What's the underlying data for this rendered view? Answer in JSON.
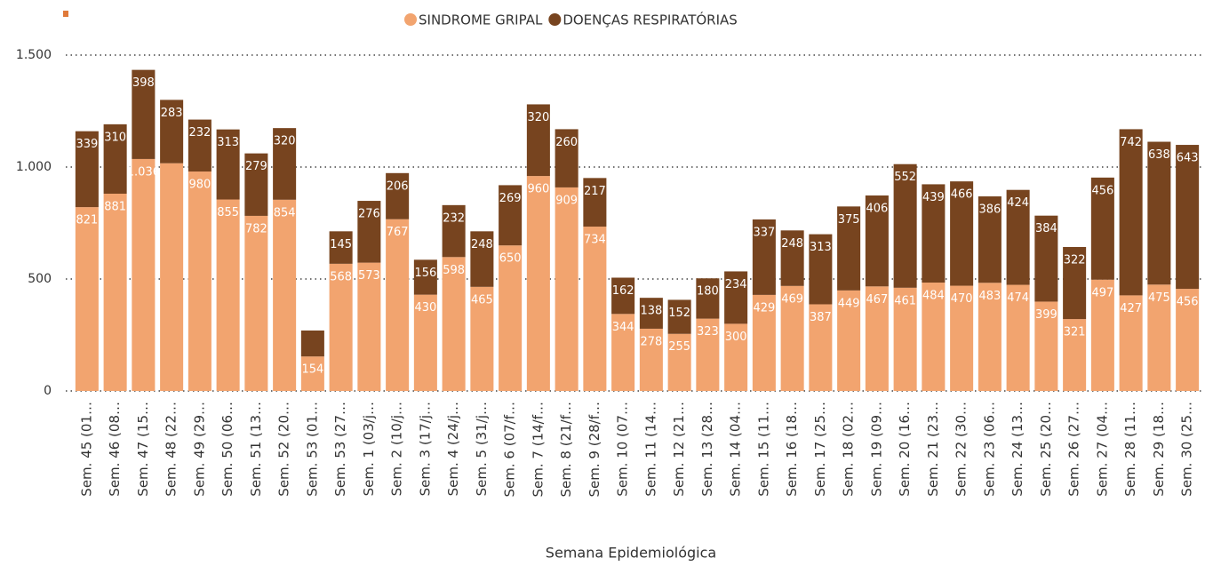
{
  "chart_data": {
    "type": "stacked-bar",
    "x_label": "Semana Epidemiológica",
    "categories": [
      "Sem. 45 (01…",
      "Sem. 46 (08…",
      "Sem. 47 (15…",
      "Sem. 48 (22…",
      "Sem. 49 (29…",
      "Sem. 50 (06…",
      "Sem. 51 (13…",
      "Sem. 52 (20…",
      "Sem. 53 (01…",
      "Sem. 53 (27…",
      "Sem. 1 (03/j…",
      "Sem. 2 (10/j…",
      "Sem. 3 (17/j…",
      "Sem. 4 (24/j…",
      "Sem. 5 (31/j…",
      "Sem. 6 (07/f…",
      "Sem. 7 (14/f…",
      "Sem. 8 (21/f…",
      "Sem. 9 (28/f…",
      "Sem. 10 (07…",
      "Sem. 11 (14…",
      "Sem. 12 (21…",
      "Sem. 13 (28…",
      "Sem. 14 (04…",
      "Sem. 15 (11…",
      "Sem. 16 (18…",
      "Sem. 17 (25…",
      "Sem. 18 (02…",
      "Sem. 19 (09…",
      "Sem. 20 (16…",
      "Sem. 21 (23…",
      "Sem. 22 (30…",
      "Sem. 23 (06…",
      "Sem. 24 (13…",
      "Sem. 25 (20…",
      "Sem. 26 (27…",
      "Sem. 27 (04…",
      "Sem. 28 (11…",
      "Sem. 29 (18…",
      "Sem. 30 (25…"
    ],
    "series": [
      {
        "name": "SINDROME GRIPAL",
        "color": "#f2a46f",
        "values": [
          821,
          881,
          1036,
          1017,
          980,
          855,
          782,
          854,
          154,
          568,
          573,
          767,
          430,
          598,
          465,
          650,
          960,
          909,
          734,
          344,
          278,
          255,
          323,
          300,
          429,
          469,
          387,
          449,
          467,
          461,
          484,
          470,
          483,
          474,
          399,
          321,
          497,
          427,
          475,
          456
        ],
        "value_labels": [
          "821",
          "881",
          "1.036",
          null,
          "980",
          "855",
          "782",
          "854",
          "154",
          "568",
          "573",
          "767",
          "430",
          "598",
          "465",
          "650",
          "960",
          "909",
          "734",
          "344",
          "278",
          "255",
          "323",
          "300",
          "429",
          "469",
          "387",
          "449",
          "467",
          "461",
          "484",
          "470",
          "483",
          "474",
          "399",
          "321",
          "497",
          "427",
          "475",
          "456"
        ]
      },
      {
        "name": "DOENÇAS RESPIRATÓRIAS",
        "color": "#77441f",
        "values": [
          339,
          310,
          398,
          283,
          232,
          313,
          279,
          320,
          116,
          145,
          276,
          206,
          156,
          232,
          248,
          269,
          320,
          260,
          217,
          162,
          138,
          152,
          180,
          234,
          337,
          248,
          313,
          375,
          406,
          552,
          439,
          466,
          386,
          424,
          384,
          322,
          456,
          742,
          638,
          643
        ],
        "value_labels": [
          "339",
          "310",
          "398",
          "283",
          "232",
          "313",
          "279",
          "320",
          null,
          "145",
          "276",
          "206",
          "156",
          "232",
          "248",
          "269",
          "320",
          "260",
          "217",
          "162",
          "138",
          "152",
          "180",
          "234",
          "337",
          "248",
          "313",
          "375",
          "406",
          "552",
          "439",
          "466",
          "386",
          "424",
          "384",
          "322",
          "456",
          "742",
          "638",
          "643"
        ]
      }
    ],
    "ylim": [
      0,
      1500
    ],
    "yticks": [
      0,
      500,
      {
        "value": 1000,
        "label": "1.000"
      },
      {
        "value": 1500,
        "label": "1.500"
      }
    ],
    "grid": true
  }
}
